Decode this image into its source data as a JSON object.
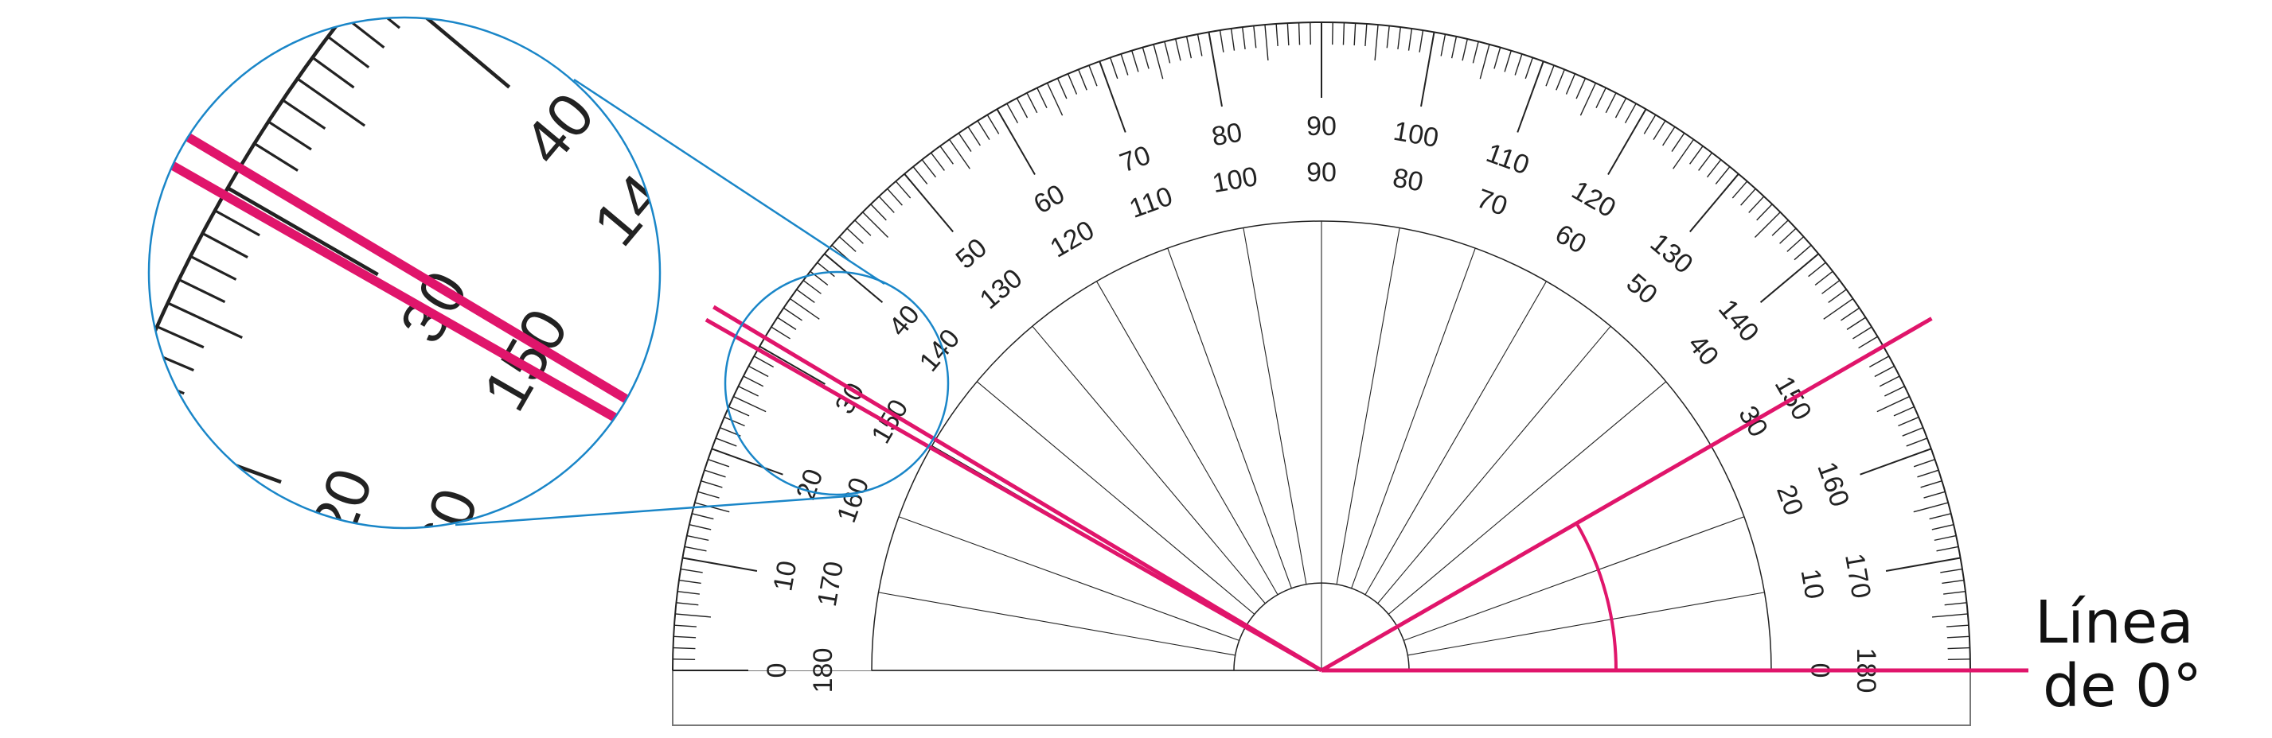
{
  "protractor": {
    "outer_labels": [
      "0",
      "10",
      "20",
      "30",
      "40",
      "50",
      "60",
      "70",
      "80",
      "90",
      "100",
      "110",
      "120",
      "130",
      "140",
      "150",
      "160",
      "170",
      "180"
    ],
    "inner_labels": [
      "180",
      "170",
      "160",
      "150",
      "140",
      "130",
      "120",
      "110",
      "100",
      "90",
      "80",
      "70",
      "60",
      "50",
      "40",
      "30",
      "20",
      "10",
      "0"
    ]
  },
  "measurement": {
    "angle_degrees": 30,
    "left_ray_angles_degrees": [
      149.1,
      150.3
    ]
  },
  "annotation": {
    "line1": "Línea",
    "line2": "de 0°"
  },
  "colors": {
    "ink": "#222222",
    "highlight": "#e0156b",
    "magnifier": "#1a86c8"
  }
}
